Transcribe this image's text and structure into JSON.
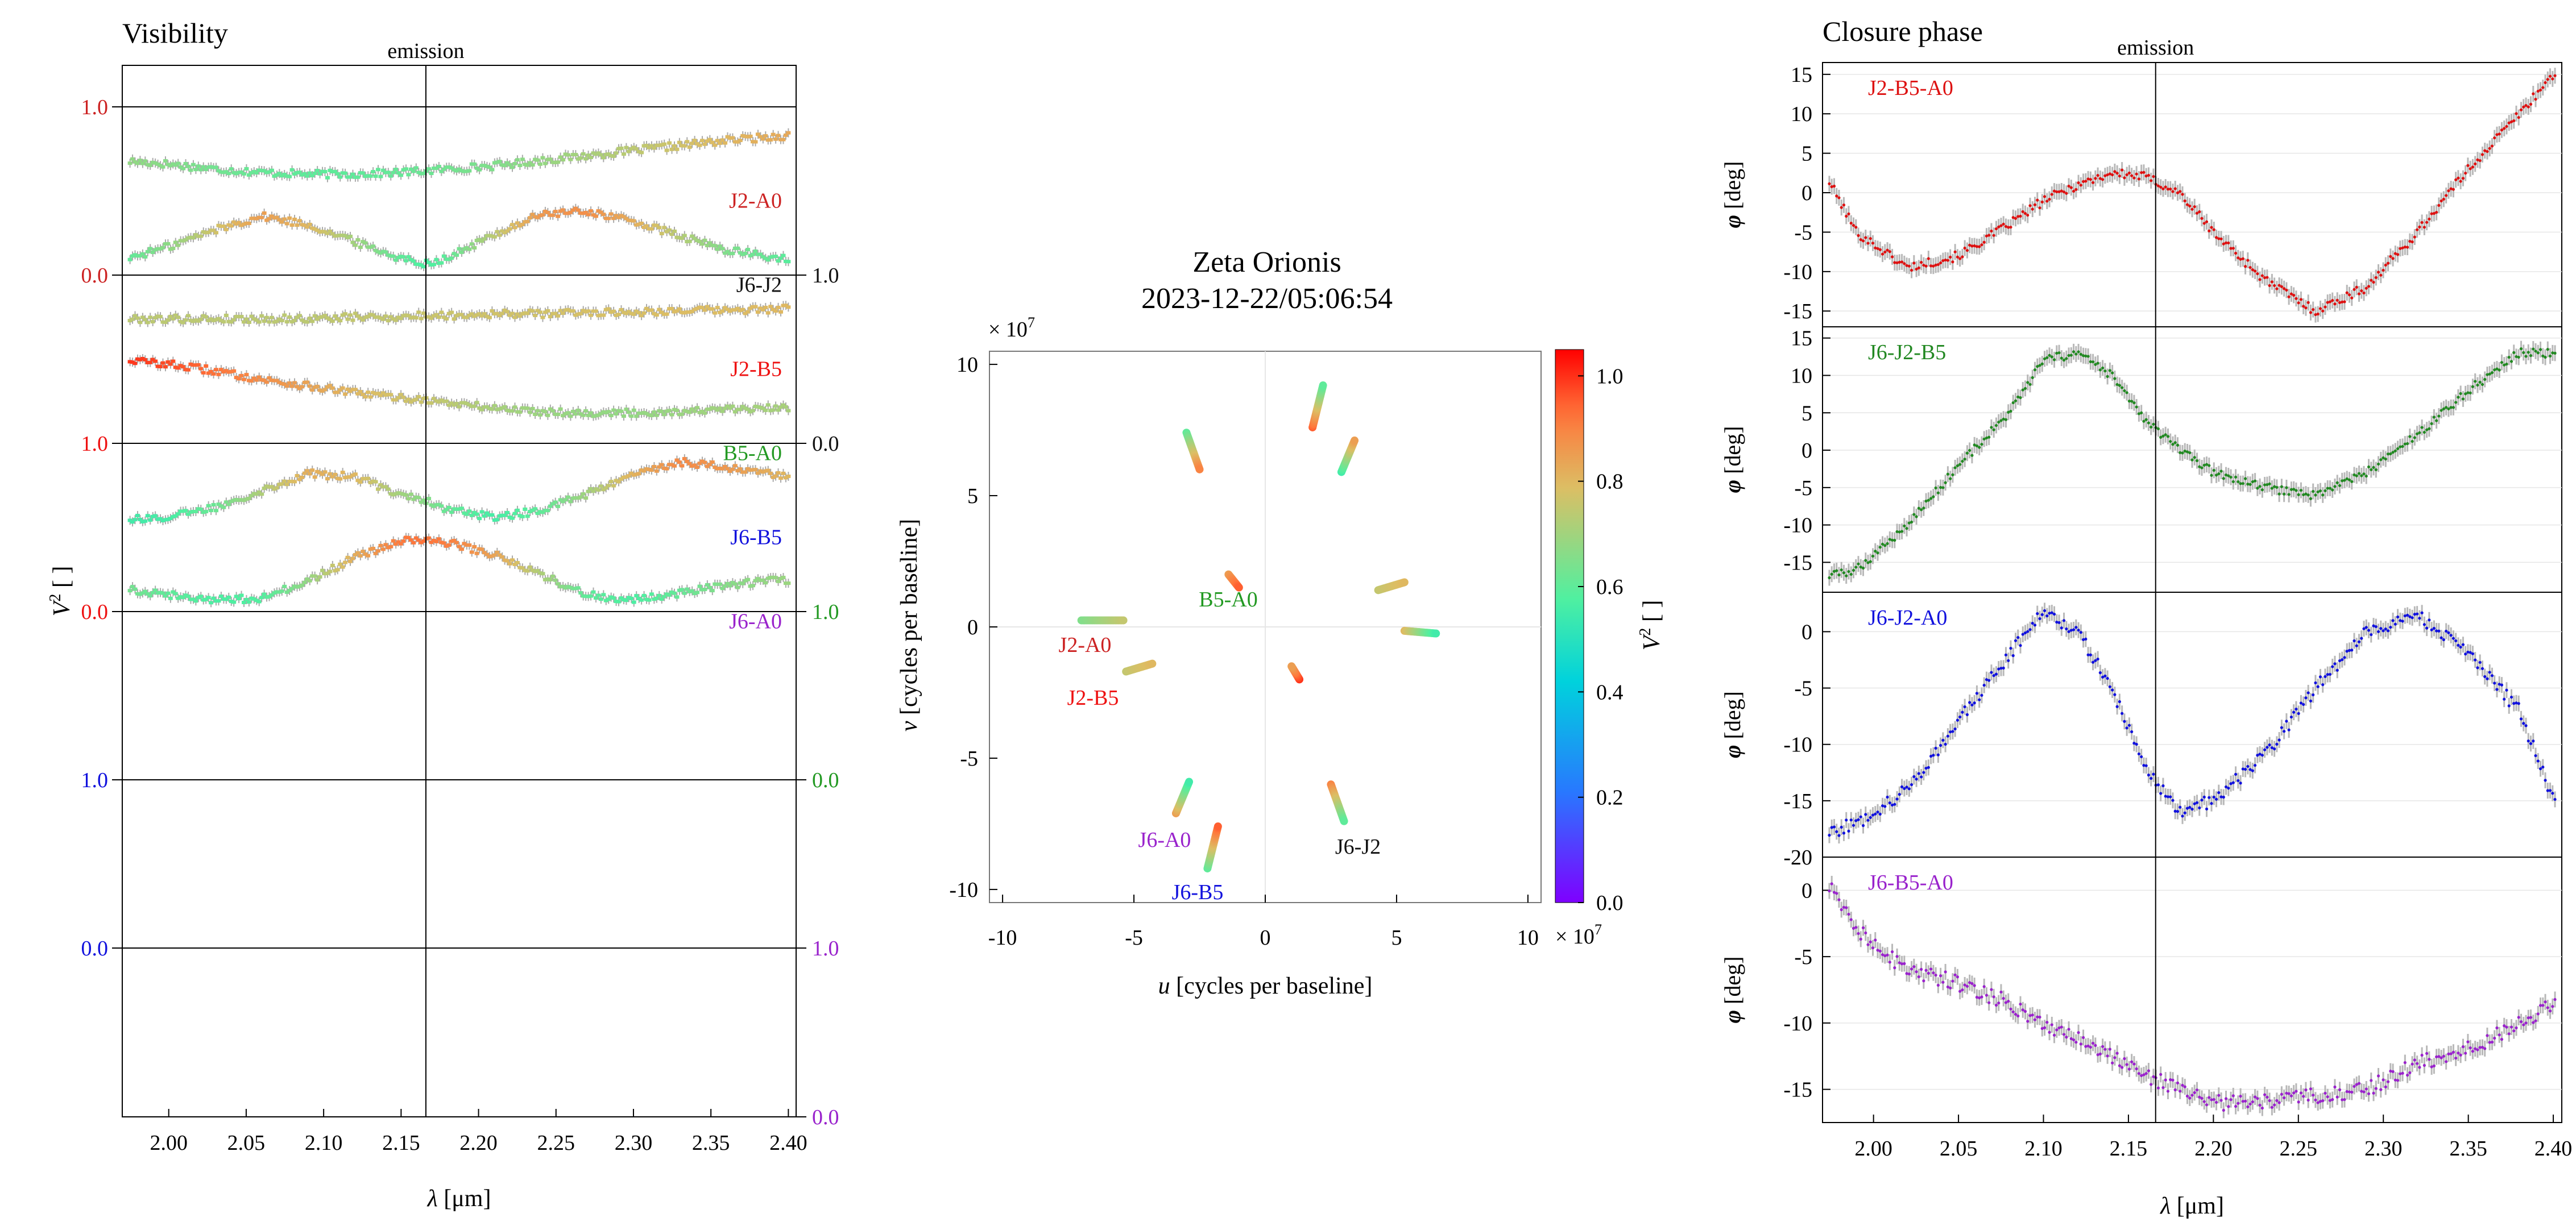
{
  "colors": {
    "J2-A0": "#cc2222",
    "J6-J2": "#111111",
    "J2-B5": "#ee1111",
    "B5-A0": "#229922",
    "J6-B5": "#1111dd",
    "J6-A0": "#9922cc",
    "axis": "#000000",
    "errorbar": "#aaaaaa",
    "grid": "#e6e6e6"
  },
  "visibility": {
    "title": "Visibility",
    "emission_label": "emission",
    "emission_wavelength": 2.166,
    "ylabel_main": "V",
    "ylabel_sup": "2",
    "ylabel_unit": " [ ]",
    "xlabel_sym": "λ",
    "xlabel_unit": " [μm]",
    "xlim": [
      1.97,
      2.405
    ],
    "xticks": [
      "2.00",
      "2.05",
      "2.10",
      "2.15",
      "2.20",
      "2.25",
      "2.30",
      "2.35",
      "2.40"
    ],
    "left_ticks": [
      {
        "label": "1.0",
        "color": "#cc2222"
      },
      {
        "label": "0.0",
        "color": "#cc2222"
      },
      {
        "label": "1.0",
        "color": "#ee1111"
      },
      {
        "label": "0.0",
        "color": "#ee1111"
      },
      {
        "label": "1.0",
        "color": "#1111dd"
      },
      {
        "label": "0.0",
        "color": "#1111dd"
      }
    ],
    "right_ticks": [
      {
        "label": "1.0",
        "color": "#111111"
      },
      {
        "label": "0.0",
        "color": "#111111"
      },
      {
        "label": "1.0",
        "color": "#229922"
      },
      {
        "label": "0.0",
        "color": "#229922"
      },
      {
        "label": "1.0",
        "color": "#9922cc"
      },
      {
        "label": "0.0",
        "color": "#9922cc"
      }
    ]
  },
  "uv_plot": {
    "title_line1": "Zeta Orionis",
    "title_line2": "2023-12-22/05:06:54",
    "scale_label": "× 10",
    "scale_exp": "7",
    "xlabel_sym": "u",
    "xlabel_unit": " [cycles per baseline]",
    "ylabel_sym": "v",
    "ylabel_unit": " [cycles per baseline]",
    "xticks": [
      "-10",
      "-5",
      "0",
      "5",
      "10"
    ],
    "yticks": [
      "10",
      "5",
      "0",
      "-5",
      "-10"
    ],
    "colorbar_ticks": [
      "1.0",
      "0.8",
      "0.6",
      "0.4",
      "0.2",
      "0.0"
    ],
    "colorbar_label_main": "V",
    "colorbar_label_sup": "2",
    "colorbar_label_unit": " [ ]",
    "baseline_labels": [
      {
        "name": "B5-A0",
        "color": "#229922"
      },
      {
        "name": "J2-A0",
        "color": "#cc2222"
      },
      {
        "name": "J2-B5",
        "color": "#ee1111"
      },
      {
        "name": "J6-A0",
        "color": "#9922cc"
      },
      {
        "name": "J6-B5",
        "color": "#1111dd"
      },
      {
        "name": "J6-J2",
        "color": "#111111"
      }
    ]
  },
  "closure_phase": {
    "title": "Closure phase",
    "emission_label": "emission",
    "ylabel_sym": "φ",
    "ylabel_unit": " [deg]",
    "xlabel_sym": "λ",
    "xlabel_unit": " [μm]",
    "xticks": [
      "2.00",
      "2.05",
      "2.10",
      "2.15",
      "2.20",
      "2.25",
      "2.30",
      "2.35",
      "2.40"
    ],
    "panel_yticks": [
      [
        "15",
        "10",
        "5",
        "0",
        "-5",
        "-10",
        "-15"
      ],
      [
        "15",
        "10",
        "5",
        "0",
        "-5",
        "-10",
        "-15"
      ],
      [
        "0",
        "-5",
        "-10",
        "-15",
        "-20"
      ],
      [
        "0",
        "-5",
        "-10",
        "-15"
      ]
    ]
  },
  "chart_data": [
    {
      "type": "scatter",
      "name": "visibility",
      "xlabel": "λ [μm]",
      "ylabel": "V² [ ]",
      "xlim": [
        1.97,
        2.405
      ],
      "ylim_per_panel": [
        0,
        1
      ],
      "x": [
        1.97,
        2.0,
        2.03,
        2.06,
        2.09,
        2.12,
        2.15,
        2.166,
        2.18,
        2.21,
        2.24,
        2.27,
        2.3,
        2.33,
        2.36,
        2.4
      ],
      "series": [
        {
          "name": "J2-A0",
          "values": [
            0.68,
            0.66,
            0.63,
            0.61,
            0.6,
            0.6,
            0.61,
            0.62,
            0.63,
            0.65,
            0.68,
            0.71,
            0.74,
            0.77,
            0.8,
            0.83
          ]
        },
        {
          "name": "J6-J2",
          "values": [
            0.59,
            0.67,
            0.77,
            0.85,
            0.8,
            0.7,
            0.6,
            0.57,
            0.6,
            0.74,
            0.86,
            0.88,
            0.82,
            0.73,
            0.65,
            0.59
          ]
        },
        {
          "name": "J2-B5",
          "values": [
            0.74,
            0.74,
            0.74,
            0.74,
            0.74,
            0.75,
            0.75,
            0.76,
            0.76,
            0.77,
            0.77,
            0.78,
            0.78,
            0.79,
            0.79,
            0.8
          ]
        },
        {
          "name": "B5-A0",
          "values": [
            1.0,
            0.97,
            0.93,
            0.88,
            0.84,
            0.8,
            0.77,
            0.76,
            0.74,
            0.71,
            0.69,
            0.68,
            0.68,
            0.69,
            0.7,
            0.71
          ]
        },
        {
          "name": "J6-B5",
          "values": [
            0.55,
            0.56,
            0.62,
            0.72,
            0.82,
            0.8,
            0.7,
            0.66,
            0.61,
            0.56,
            0.6,
            0.7,
            0.81,
            0.89,
            0.86,
            0.8
          ]
        },
        {
          "name": "J6-A0",
          "values": [
            0.64,
            0.6,
            0.57,
            0.58,
            0.68,
            0.82,
            0.92,
            0.93,
            0.91,
            0.84,
            0.72,
            0.6,
            0.57,
            0.61,
            0.66,
            0.69
          ]
        }
      ]
    },
    {
      "type": "scatter",
      "name": "uv-coverage",
      "title": "Zeta Orionis 2023-12-22/05:06:54",
      "xlabel": "u [cycles per baseline]",
      "ylabel": "v [cycles per baseline]",
      "xlim": [
        -10.5,
        10.5
      ],
      "ylim": [
        -10.5,
        10.5
      ],
      "units": "× 10^7",
      "colorbar": {
        "label": "V² [ ]",
        "range": [
          0.0,
          1.05
        ],
        "colormap": "rainbow"
      },
      "tracks": [
        {
          "u": [
            1.8,
            2.2
          ],
          "v": [
            7.6,
            9.2
          ],
          "v2_start": 0.95,
          "v2_end": 0.6
        },
        {
          "u": [
            2.9,
            3.4
          ],
          "v": [
            5.9,
            7.1
          ],
          "v2_start": 0.55,
          "v2_end": 0.85
        },
        {
          "u": [
            -3.0,
            -2.5
          ],
          "v": [
            7.4,
            6.0
          ],
          "v2_start": 0.6,
          "v2_end": 0.9
        },
        {
          "u": [
            -1.4,
            -1.0
          ],
          "v": [
            2.0,
            1.5
          ],
          "v2_start": 0.85,
          "v2_end": 0.95
        },
        {
          "u": [
            4.3,
            5.3
          ],
          "v": [
            1.4,
            1.7
          ],
          "v2_start": 0.75,
          "v2_end": 0.8
        },
        {
          "u": [
            5.3,
            6.5
          ],
          "v": [
            -0.15,
            -0.25
          ],
          "v2_start": 0.8,
          "v2_end": 0.55
        },
        {
          "u": [
            -7.0,
            -5.4
          ],
          "v": [
            0.25,
            0.25
          ],
          "v2_start": 0.65,
          "v2_end": 0.75
        },
        {
          "u": [
            -5.3,
            -4.3
          ],
          "v": [
            -1.7,
            -1.4
          ],
          "v2_start": 0.75,
          "v2_end": 0.8
        },
        {
          "u": [
            1.3,
            1.0
          ],
          "v": [
            -2.0,
            -1.5
          ],
          "v2_start": 1.0,
          "v2_end": 0.85
        },
        {
          "u": [
            -3.4,
            -2.9
          ],
          "v": [
            -7.1,
            -5.9
          ],
          "v2_start": 0.85,
          "v2_end": 0.55
        },
        {
          "u": [
            -2.2,
            -1.8
          ],
          "v": [
            -9.2,
            -7.6
          ],
          "v2_start": 0.6,
          "v2_end": 0.95
        },
        {
          "u": [
            2.5,
            3.0
          ],
          "v": [
            -6.0,
            -7.4
          ],
          "v2_start": 0.9,
          "v2_end": 0.6
        }
      ]
    },
    {
      "type": "scatter",
      "name": "closure-phase",
      "xlabel": "λ [μm]",
      "ylabel": "φ [deg]",
      "xlim": [
        1.97,
        2.405
      ],
      "x": [
        1.97,
        1.99,
        2.02,
        2.05,
        2.08,
        2.1,
        2.12,
        2.14,
        2.16,
        2.18,
        2.2,
        2.23,
        2.26,
        2.29,
        2.32,
        2.35,
        2.38,
        2.4
      ],
      "series": [
        {
          "name": "J2-B5-A0",
          "ylim": [
            -17,
            16.5
          ],
          "values": [
            3,
            -5,
            -9.5,
            -8,
            -4,
            -1,
            1,
            2.5,
            2,
            0,
            -5,
            -11,
            -15,
            -12,
            -5,
            3,
            10,
            15
          ]
        },
        {
          "name": "J6-J2-B5",
          "ylim": [
            -19,
            16.5
          ],
          "values": [
            -17,
            -16,
            -10,
            -2,
            5,
            12,
            13,
            10,
            4,
            0,
            -3,
            -5,
            -6,
            -3,
            2,
            8,
            13,
            13
          ]
        },
        {
          "name": "J6-J2-A0",
          "ylim": [
            -20,
            3.5
          ],
          "values": [
            -18,
            -17,
            -14,
            -8,
            -2,
            2,
            0,
            -5,
            -12,
            -16,
            -15,
            -11,
            -5,
            0,
            1.5,
            -2,
            -7,
            -15
          ]
        },
        {
          "name": "J6-B5-A0",
          "ylim": [
            -17.5,
            2.5
          ],
          "values": [
            1,
            -3,
            -6,
            -7,
            -8.5,
            -10,
            -11,
            -12.5,
            -14,
            -15,
            -16,
            -16,
            -15.5,
            -15,
            -13,
            -12,
            -10,
            -8.5
          ]
        }
      ]
    }
  ]
}
